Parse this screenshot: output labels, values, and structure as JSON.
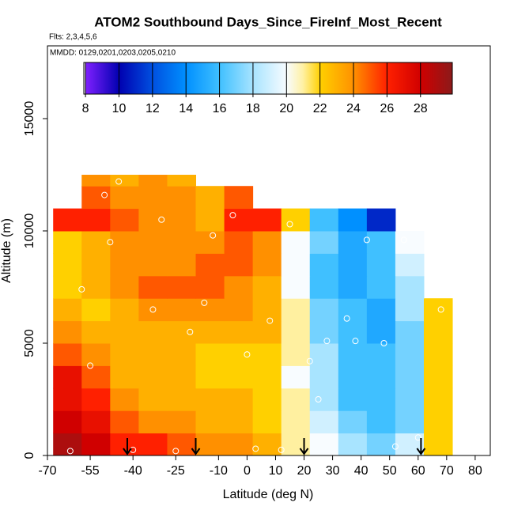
{
  "chart_data": {
    "type": "heatmap",
    "title": "ATOM2 Southbound Days_Since_FireInf_Most_Recent",
    "subtitle": "Flts: 2,3,4,5,6",
    "annotation": "MMDD: 0129,0201,0203,0205,0210",
    "x_label": "Latitude (deg N)",
    "y_label": "Altitude (m)",
    "xlim": [
      -70,
      85.3
    ],
    "ylim": [
      0,
      18240
    ],
    "xticks": [
      -70,
      -55,
      -40,
      -25,
      -10,
      0,
      10,
      20,
      30,
      40,
      50,
      60,
      70,
      80
    ],
    "yticks": [
      0,
      5000,
      10000,
      15000
    ],
    "x_edges": [
      -68,
      -58,
      -48,
      -38,
      -28,
      -18,
      -8,
      2,
      12,
      22,
      32,
      42,
      52,
      62,
      72
    ],
    "y_edges": [
      0,
      1000,
      2000,
      3000,
      4000,
      5000,
      6000,
      7000,
      8000,
      9000,
      10000,
      11000,
      12000,
      12500
    ],
    "values": [
      [
        29,
        28,
        26,
        26,
        25,
        24,
        24,
        23,
        21,
        20,
        18,
        17,
        19,
        22
      ],
      [
        28,
        27,
        25,
        24,
        24,
        23,
        23,
        22,
        21,
        19,
        17,
        16,
        17,
        22
      ],
      [
        27,
        26,
        24,
        23,
        23,
        23,
        23,
        22,
        21,
        18,
        16,
        16,
        17,
        22
      ],
      [
        27,
        25,
        23,
        23,
        23,
        22,
        22,
        22,
        20,
        18,
        16,
        16,
        17,
        22
      ],
      [
        25,
        24,
        23,
        23,
        23,
        22,
        22,
        22,
        21,
        18,
        16,
        16,
        17,
        22
      ],
      [
        24,
        23,
        23,
        23,
        23,
        23,
        23,
        23,
        21,
        17,
        16,
        15,
        17,
        22
      ],
      [
        23,
        22,
        23,
        24,
        24,
        24,
        24,
        23,
        21,
        17,
        16,
        15,
        18,
        22
      ],
      [
        22,
        23,
        24,
        25,
        25,
        25,
        24,
        23,
        20,
        16,
        15,
        16,
        18,
        null
      ],
      [
        22,
        23,
        24,
        24,
        24,
        25,
        25,
        24,
        20,
        16,
        15,
        16,
        19,
        null
      ],
      [
        22,
        23,
        24,
        24,
        24,
        24,
        25,
        24,
        20,
        17,
        15,
        16,
        20,
        null
      ],
      [
        26,
        26,
        25,
        24,
        24,
        23,
        26,
        26,
        22,
        16,
        14,
        11,
        null,
        null
      ],
      [
        null,
        25,
        24,
        24,
        24,
        23,
        25,
        null,
        null,
        null,
        null,
        null,
        null,
        null
      ],
      [
        null,
        24,
        23,
        24,
        23,
        null,
        null,
        null,
        null,
        null,
        null,
        null,
        null,
        null
      ]
    ],
    "colorbar": {
      "lim": [
        7.9,
        29.9
      ],
      "ticks": [
        8,
        10,
        12,
        14,
        16,
        18,
        20,
        22,
        24,
        26,
        28
      ],
      "stops": [
        8,
        10,
        12,
        14,
        16,
        18,
        20,
        21,
        22,
        24,
        26,
        28,
        29.9
      ],
      "colors": [
        "#8020ff",
        "#0000b0",
        "#0050e0",
        "#0090ff",
        "#40c0ff",
        "#a8e4ff",
        "#f8fcff",
        "#fff0a0",
        "#ffd000",
        "#ff9000",
        "#ff2000",
        "#d00000",
        "#8b1a1a"
      ]
    },
    "points": {
      "x": [
        -62,
        -55,
        -48,
        -40,
        -33,
        -25,
        -20,
        -12,
        -5,
        3,
        8,
        15,
        22,
        28,
        35,
        42,
        48,
        55,
        60,
        -58,
        -45,
        -30,
        -15,
        0,
        12,
        25,
        38,
        52,
        68,
        -50
      ],
      "y": [
        200,
        4000,
        9500,
        250,
        6500,
        200,
        5500,
        9800,
        10700,
        300,
        6000,
        10300,
        4200,
        5100,
        6100,
        9600,
        5000,
        9600,
        800,
        7400,
        12200,
        10500,
        6800,
        4500,
        250,
        2500,
        5100,
        400,
        6500,
        11600
      ]
    },
    "arrows_x": [
      -42,
      -18,
      20,
      61
    ]
  }
}
